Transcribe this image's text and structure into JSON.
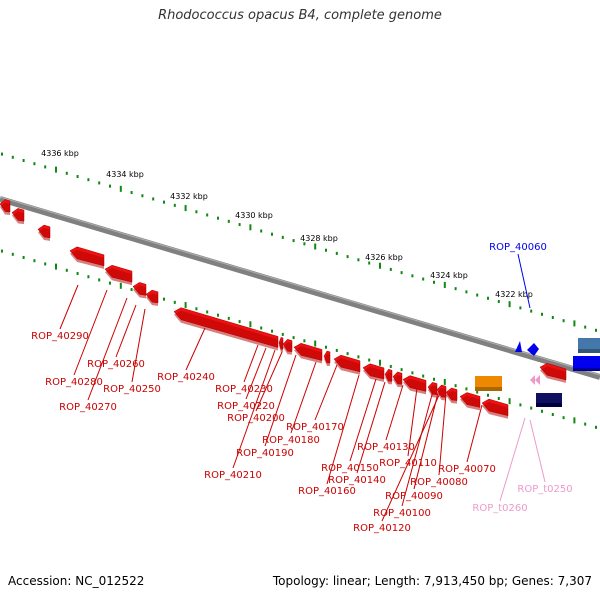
{
  "title": "Rhodococcus opacus B4, complete genome",
  "footer": {
    "accession": "Accession: NC_012522",
    "stats": "Topology: linear; Length: 7,913,450 bp; Genes: 7,307"
  },
  "colors": {
    "forward_gene": "#ee1111",
    "reverse_gene_label": "#cc0000",
    "backbone": "#808080",
    "tick": "#118811",
    "blue_gene": "#0000ee",
    "trna": "#ee99cc",
    "orange_feature": "#ee8800",
    "navy_feature": "#101060",
    "steel_feature": "#4477aa"
  },
  "scale": {
    "unit": "kbp",
    "ticks": [
      "4336 kbp",
      "4334 kbp",
      "4332 kbp",
      "4330 kbp",
      "4328 kbp",
      "4326 kbp",
      "4324 kbp",
      "4322 kbp"
    ]
  },
  "gene_labels": [
    {
      "id": "ROP_40060",
      "kind": "blue"
    },
    {
      "id": "ROP_40290",
      "kind": "red"
    },
    {
      "id": "ROP_40280",
      "kind": "red"
    },
    {
      "id": "ROP_40270",
      "kind": "red"
    },
    {
      "id": "ROP_40260",
      "kind": "red"
    },
    {
      "id": "ROP_40250",
      "kind": "red"
    },
    {
      "id": "ROP_40240",
      "kind": "red"
    },
    {
      "id": "ROP_40230",
      "kind": "red"
    },
    {
      "id": "ROP_40220",
      "kind": "red"
    },
    {
      "id": "ROP_40210",
      "kind": "red"
    },
    {
      "id": "ROP_40200",
      "kind": "red"
    },
    {
      "id": "ROP_40190",
      "kind": "red"
    },
    {
      "id": "ROP_40180",
      "kind": "red"
    },
    {
      "id": "ROP_40170",
      "kind": "red"
    },
    {
      "id": "ROP_40160",
      "kind": "red"
    },
    {
      "id": "ROP_40150",
      "kind": "red"
    },
    {
      "id": "ROP_40140",
      "kind": "red"
    },
    {
      "id": "ROP_40130",
      "kind": "red"
    },
    {
      "id": "ROP_40120",
      "kind": "red"
    },
    {
      "id": "ROP_40110",
      "kind": "red"
    },
    {
      "id": "ROP_40100",
      "kind": "red"
    },
    {
      "id": "ROP_40090",
      "kind": "red"
    },
    {
      "id": "ROP_40080",
      "kind": "red"
    },
    {
      "id": "ROP_40070",
      "kind": "red"
    },
    {
      "id": "ROP_t0260",
      "kind": "trna"
    },
    {
      "id": "ROP_t0250",
      "kind": "trna"
    }
  ]
}
